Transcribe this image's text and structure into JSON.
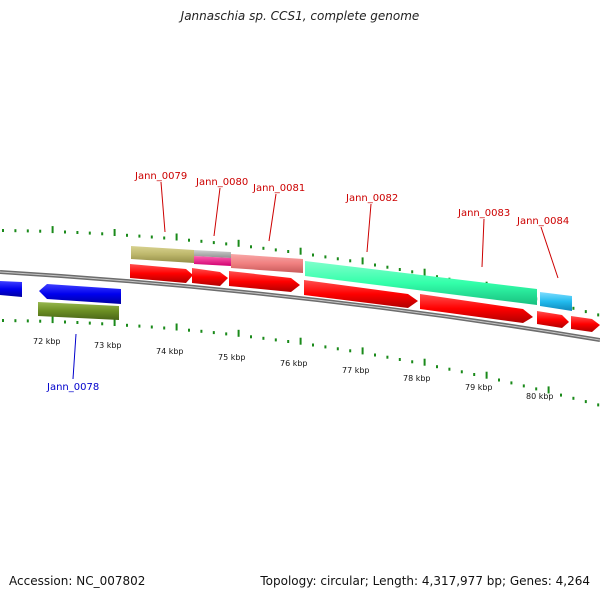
{
  "title": "Jannaschia sp. CCS1, complete genome",
  "footer": {
    "accession": "Accession: NC_007802",
    "topology": "Topology: circular; Length: 4,317,977 bp; Genes: 4,264"
  },
  "scale_labels": [
    "72 kbp",
    "73 kbp",
    "74 kbp",
    "75 kbp",
    "76 kbp",
    "77 kbp",
    "78 kbp",
    "79 kbp",
    "80 kbp"
  ],
  "gene_labels": [
    {
      "id": "Jann_0078",
      "color": "#0000cc"
    },
    {
      "id": "Jann_0079",
      "color": "#cc0000"
    },
    {
      "id": "Jann_0080",
      "color": "#cc0000"
    },
    {
      "id": "Jann_0081",
      "color": "#cc0000"
    },
    {
      "id": "Jann_0082",
      "color": "#cc0000"
    },
    {
      "id": "Jann_0083",
      "color": "#cc0000"
    },
    {
      "id": "Jann_0084",
      "color": "#cc0000"
    }
  ],
  "colors": {
    "forward_strand": "#ff0000",
    "reverse_strand": "#0000ee",
    "backbone": "#777777",
    "ticks": "#1a8a1a",
    "cog_olive": "#bdb76b",
    "cog_magenta": "#ff1493",
    "cog_salmon": "#f08080",
    "cog_aquamarine": "#33ffaa",
    "cog_skyblue": "#22bbee",
    "cog_darkolive": "#6b8e23"
  }
}
